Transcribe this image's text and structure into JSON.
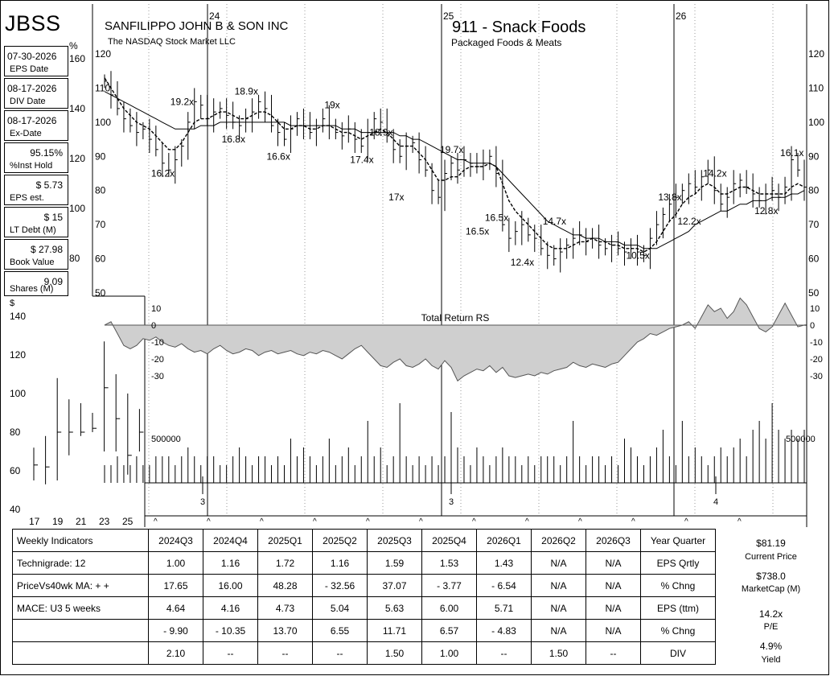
{
  "header": {
    "ticker": "JBSS",
    "company": "SANFILIPPO JOHN B & SON INC",
    "exchange": "The NASDAQ Stock Market LLC",
    "group": "911 - Snack Foods",
    "subgroup": "Packaged Foods & Meats"
  },
  "stats": [
    {
      "value": "07-30-2026",
      "label": "EPS Date"
    },
    {
      "value": "08-17-2026",
      "label": "DIV Date"
    },
    {
      "value": "08-17-2026",
      "label": "Ex-Date"
    },
    {
      "value": "95.15%",
      "label": "%Inst Hold"
    },
    {
      "value": "$ 5.73",
      "label": "EPS est."
    },
    {
      "value": "$ 15",
      "label": "LT Debt (M)"
    },
    {
      "value": "$ 27.98",
      "label": "Book Value"
    },
    {
      "value": "9.09",
      "label": "Shares (M)"
    }
  ],
  "chart_data": {
    "type": "line",
    "price": {
      "x_labels": [
        "24",
        "25",
        "26"
      ],
      "y_ticks": [
        50,
        60,
        70,
        80,
        90,
        100,
        110,
        120
      ],
      "left_pct_ticks": [
        "%",
        "160",
        "140",
        "120",
        "100",
        "80"
      ],
      "ylim": [
        50,
        120
      ],
      "weekly_close": [
        112,
        108,
        104,
        101,
        99,
        97,
        98,
        95,
        92,
        88,
        86,
        89,
        93,
        100,
        106,
        105,
        101,
        103,
        104,
        102,
        100,
        99,
        101,
        103,
        106,
        104,
        99,
        97,
        95,
        98,
        101,
        99,
        97,
        99,
        101,
        99,
        97,
        96,
        98,
        95,
        93,
        97,
        101,
        100,
        96,
        92,
        90,
        93,
        94,
        89,
        86,
        80,
        78,
        85,
        88,
        86,
        89,
        88,
        87,
        88,
        90,
        85,
        70,
        66,
        68,
        70,
        67,
        66,
        63,
        61,
        60,
        62,
        64,
        66,
        67,
        65,
        66,
        64,
        63,
        64,
        63,
        62,
        63,
        62,
        61,
        66,
        70,
        73,
        76,
        78,
        80,
        82,
        81,
        84,
        86,
        80,
        76,
        78,
        82,
        83,
        81,
        79,
        77,
        79,
        80,
        78,
        81,
        89,
        86,
        81
      ],
      "ma_short": [
        113,
        110,
        107,
        104,
        102,
        100,
        99,
        98,
        96,
        94,
        92,
        92,
        94,
        97,
        100,
        101,
        101,
        102,
        103,
        103,
        102,
        101,
        101,
        102,
        103,
        103,
        102,
        100,
        98,
        98,
        99,
        99,
        98,
        98,
        99,
        99,
        98,
        97,
        97,
        96,
        95,
        96,
        97,
        98,
        97,
        95,
        93,
        93,
        93,
        91,
        89,
        86,
        83,
        83,
        84,
        84,
        86,
        87,
        87,
        87,
        88,
        87,
        82,
        77,
        74,
        72,
        70,
        68,
        66,
        64,
        63,
        63,
        63,
        64,
        65,
        65,
        66,
        65,
        65,
        64,
        64,
        63,
        63,
        63,
        62,
        63,
        65,
        68,
        71,
        73,
        76,
        78,
        79,
        81,
        82,
        81,
        79,
        79,
        80,
        81,
        81,
        80,
        79,
        79,
        79,
        79,
        79,
        81,
        82,
        81
      ],
      "ma_long": [
        109,
        108,
        107,
        106,
        105,
        104,
        103,
        102,
        101,
        100,
        99,
        98,
        98,
        98,
        98,
        99,
        99,
        99,
        100,
        100,
        100,
        100,
        100,
        100,
        100,
        100,
        100,
        100,
        100,
        99,
        99,
        99,
        99,
        99,
        99,
        99,
        99,
        98,
        98,
        98,
        97,
        97,
        97,
        97,
        97,
        97,
        96,
        96,
        95,
        95,
        94,
        93,
        92,
        91,
        90,
        89,
        89,
        88,
        88,
        88,
        88,
        87,
        85,
        83,
        81,
        79,
        77,
        75,
        73,
        71,
        70,
        69,
        68,
        67,
        67,
        66,
        66,
        66,
        65,
        65,
        65,
        64,
        64,
        64,
        63,
        63,
        63,
        64,
        65,
        66,
        67,
        68,
        70,
        71,
        72,
        73,
        74,
        74,
        75,
        76,
        76,
        77,
        77,
        77,
        78,
        78,
        78,
        79,
        79,
        80
      ],
      "pe_annotations": [
        {
          "text": "19.2x",
          "week": 12,
          "price": 106
        },
        {
          "text": "16.2x",
          "week": 9,
          "price": 85
        },
        {
          "text": "18.9x",
          "week": 22,
          "price": 109
        },
        {
          "text": "16.8x",
          "week": 20,
          "price": 95
        },
        {
          "text": "16.6x",
          "week": 27,
          "price": 90
        },
        {
          "text": "19x",
          "week": 36,
          "price": 105
        },
        {
          "text": "17.4x",
          "week": 40,
          "price": 89
        },
        {
          "text": "18.9x",
          "week": 43,
          "price": 97
        },
        {
          "text": "17x",
          "week": 46,
          "price": 78
        },
        {
          "text": "19.7x",
          "week": 54,
          "price": 92
        },
        {
          "text": "16.5x",
          "week": 58,
          "price": 68
        },
        {
          "text": "16.5x",
          "week": 61,
          "price": 72
        },
        {
          "text": "12.4x",
          "week": 65,
          "price": 59
        },
        {
          "text": "14.7x",
          "week": 70,
          "price": 71
        },
        {
          "text": "10.5x",
          "week": 83,
          "price": 61
        },
        {
          "text": "13.8x",
          "week": 88,
          "price": 78
        },
        {
          "text": "12.2x",
          "week": 91,
          "price": 71
        },
        {
          "text": "14.2x",
          "week": 95,
          "price": 85
        },
        {
          "text": "12.8x",
          "week": 103,
          "price": 74
        },
        {
          "text": "16.1x",
          "week": 107,
          "price": 91
        }
      ]
    },
    "relative_strength": {
      "title": "Total Return RS",
      "y_ticks": [
        10,
        0,
        -10,
        -20,
        -30
      ],
      "values": [
        0,
        2,
        -5,
        -12,
        -14,
        -12,
        -8,
        -9,
        -7,
        -10,
        -12,
        -13,
        -11,
        -14,
        -16,
        -15,
        -17,
        -14,
        -12,
        -15,
        -17,
        -16,
        -14,
        -15,
        -18,
        -16,
        -15,
        -17,
        -16,
        -15,
        -17,
        -18,
        -16,
        -17,
        -15,
        -16,
        -18,
        -20,
        -17,
        -14,
        -12,
        -16,
        -20,
        -24,
        -25,
        -22,
        -20,
        -24,
        -25,
        -23,
        -20,
        -24,
        -26,
        -21,
        -25,
        -33,
        -30,
        -28,
        -26,
        -27,
        -24,
        -28,
        -25,
        -30,
        -31,
        -30,
        -29,
        -30,
        -28,
        -29,
        -27,
        -26,
        -25,
        -22,
        -24,
        -25,
        -23,
        -24,
        -25,
        -23,
        -22,
        -18,
        -14,
        -10,
        -8,
        -5,
        -6,
        -4,
        -2,
        -1,
        0,
        2,
        -2,
        5,
        12,
        8,
        10,
        4,
        8,
        16,
        12,
        5,
        -2,
        -4,
        -1,
        6,
        13,
        6,
        -1,
        0
      ],
      "y_range": [
        -30,
        10
      ]
    },
    "volume": {
      "label": "500000",
      "quarter_marks": [
        "3",
        "3",
        "4"
      ],
      "values": [
        2,
        2,
        3,
        2,
        2,
        3,
        2,
        2,
        3,
        3,
        3,
        2,
        3,
        4,
        3,
        2,
        3,
        3,
        2,
        2,
        3,
        4,
        3,
        2,
        3,
        3,
        2,
        3,
        2,
        5,
        3,
        4,
        3,
        2,
        3,
        5,
        2,
        3,
        4,
        2,
        3,
        7,
        3,
        4,
        2,
        3,
        9,
        3,
        2,
        3,
        2,
        3,
        2,
        3,
        8,
        4,
        3,
        2,
        4,
        3,
        2,
        3,
        4,
        3,
        3,
        2,
        3,
        2,
        3,
        3,
        3,
        2,
        3,
        7,
        3,
        2,
        3,
        3,
        2,
        3,
        2,
        5,
        4,
        3,
        2,
        3,
        4,
        6,
        3,
        2,
        7,
        3,
        4,
        3,
        2,
        3,
        4,
        3,
        4,
        5,
        3,
        6,
        7,
        5,
        9,
        6,
        5,
        6,
        5,
        6
      ],
      "dividend_markers": [
        "^",
        "^",
        "^",
        "^",
        "^",
        "^",
        "^",
        "^",
        "^",
        "^",
        "^",
        "^"
      ]
    },
    "annual_range": {
      "y_axis_label": "$",
      "y_ticks": [
        140,
        120,
        100,
        80,
        60,
        40
      ],
      "x_labels": [
        "17",
        "19",
        "21",
        "23",
        "25"
      ],
      "bars": [
        {
          "year": "17",
          "high": 72,
          "low": 55,
          "close": 63
        },
        {
          "year": "18",
          "high": 78,
          "low": 53,
          "close": 62
        },
        {
          "year": "19",
          "high": 108,
          "low": 55,
          "close": 80
        },
        {
          "year": "20",
          "high": 97,
          "low": 68,
          "close": 80
        },
        {
          "year": "21",
          "high": 95,
          "low": 78,
          "close": 80
        },
        {
          "year": "22",
          "high": 90,
          "low": 80,
          "close": 82
        },
        {
          "year": "23",
          "high": 127,
          "low": 70,
          "close": 103
        },
        {
          "year": "24",
          "high": 110,
          "low": 70,
          "close": 87
        },
        {
          "year": "25",
          "high": 100,
          "low": 58,
          "close": 68
        },
        {
          "year": "26",
          "high": 92,
          "low": 70,
          "close": 80
        }
      ]
    }
  },
  "indicators": {
    "headers": [
      "2024Q3",
      "2024Q4",
      "2025Q1",
      "2025Q2",
      "2025Q3",
      "2025Q4",
      "2026Q1",
      "2026Q2",
      "2026Q3",
      "Year Quarter"
    ],
    "rows": [
      {
        "label": "Weekly Indicators",
        "cells": [
          "2024Q3",
          "2024Q4",
          "2025Q1",
          "2025Q2",
          "2025Q3",
          "2025Q4",
          "2026Q1",
          "2026Q2",
          "2026Q3",
          "Year Quarter"
        ]
      },
      {
        "label": "Technigrade: 12",
        "cells": [
          "1.00",
          "1.16",
          "1.72",
          "1.16",
          "1.59",
          "1.53",
          "1.43",
          "N/A",
          "N/A",
          "EPS Qrtly"
        ]
      },
      {
        "label": "PriceVs40wk MA:  + +",
        "cells": [
          "17.65",
          "16.00",
          "48.28",
          "- 32.56",
          "37.07",
          "- 3.77",
          "- 6.54",
          "N/A",
          "N/A",
          "% Chng"
        ]
      },
      {
        "label": "MACE: U3  5 weeks",
        "cells": [
          "4.64",
          "4.16",
          "4.73",
          "5.04",
          "5.63",
          "6.00",
          "5.71",
          "N/A",
          "N/A",
          "EPS (ttm)"
        ]
      },
      {
        "label": "",
        "cells": [
          "- 9.90",
          "- 10.35",
          "13.70",
          "6.55",
          "11.71",
          "6.57",
          "- 4.83",
          "N/A",
          "N/A",
          "% Chng"
        ]
      },
      {
        "label": "",
        "cells": [
          "2.10",
          "--",
          "--",
          "--",
          "1.50",
          "1.00",
          "--",
          "1.50",
          "--",
          "DIV"
        ]
      }
    ]
  },
  "summary": {
    "price": "$81.19",
    "price_label": "Current Price",
    "mcap": "$738.0",
    "mcap_label": "MarketCap (M)",
    "pe": "14.2x",
    "pe_label": "P/E",
    "yield": "4.9%",
    "yield_label": "Yield"
  }
}
